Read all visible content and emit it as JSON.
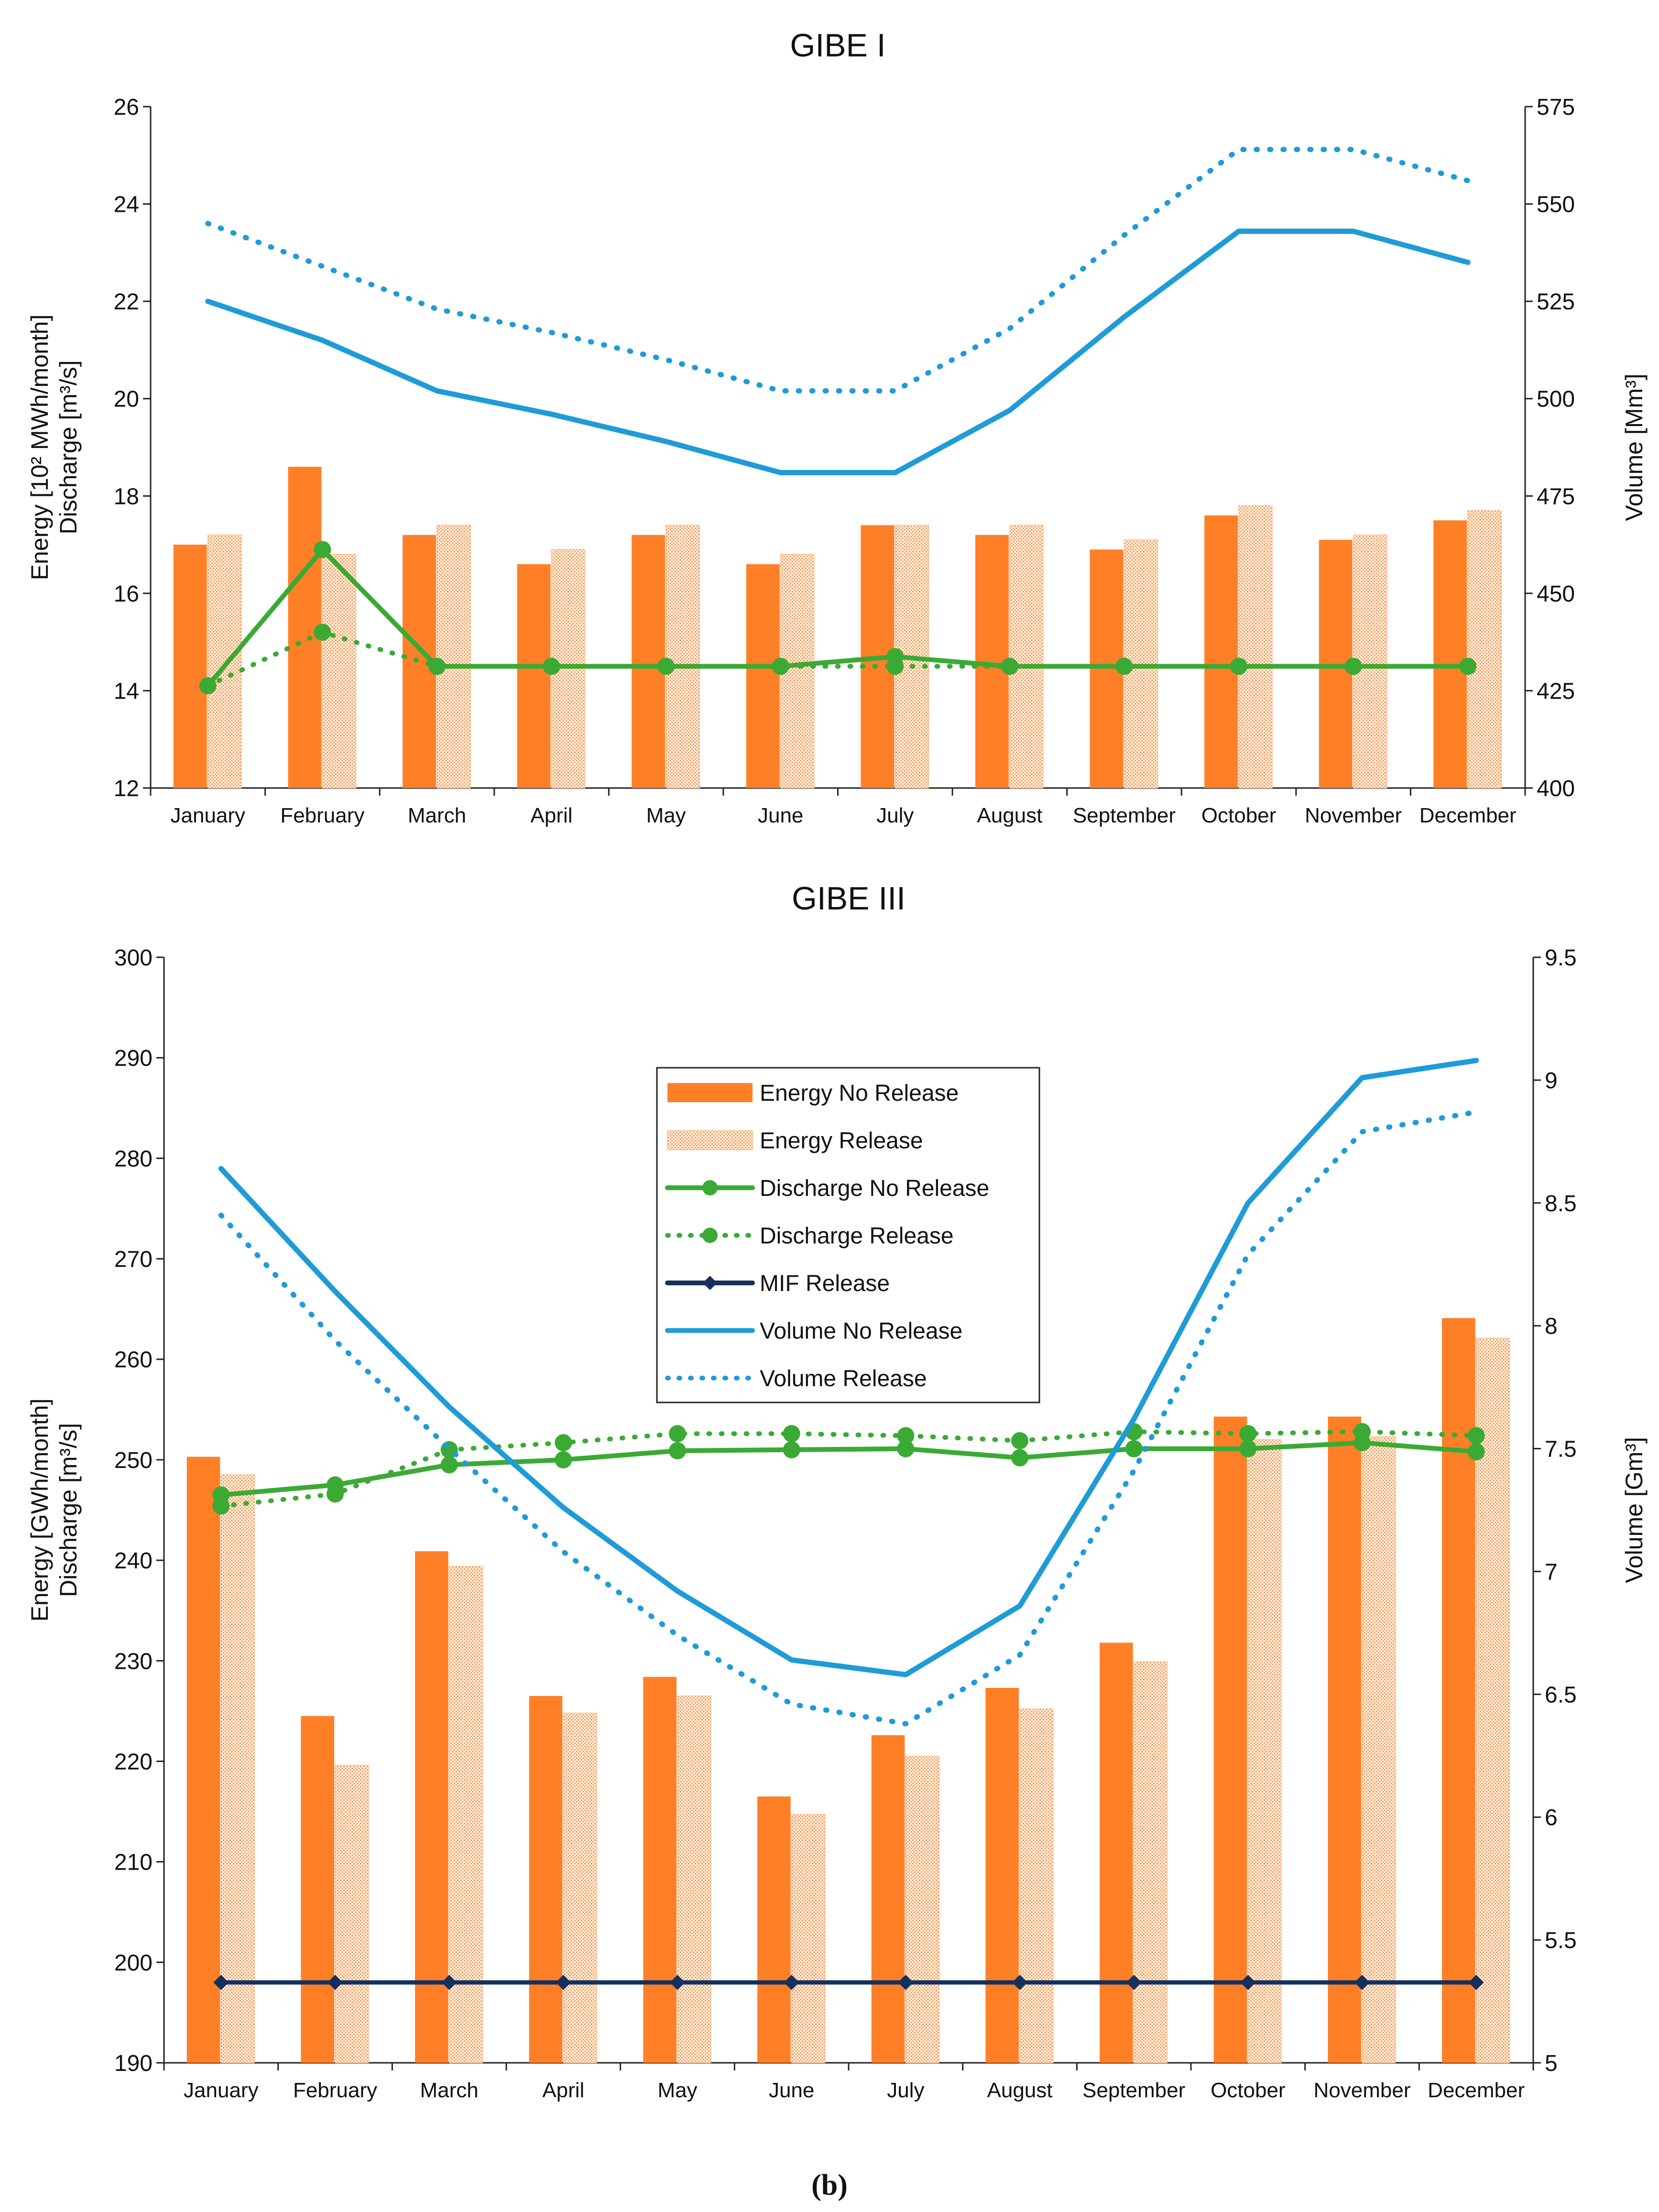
{
  "figure_label": "(b)",
  "months": [
    "January",
    "February",
    "March",
    "April",
    "May",
    "June",
    "July",
    "August",
    "September",
    "October",
    "November",
    "December"
  ],
  "colors": {
    "energy": "#FF7F27",
    "discharge": "#3AAA35",
    "mif": "#16305E",
    "volume": "#1F9BD7",
    "axis": "#222222"
  },
  "legend": [
    {
      "key": "energy_no",
      "label": "Energy No Release",
      "style": "bar-solid"
    },
    {
      "key": "energy_rel",
      "label": "Energy Release",
      "style": "bar-dotted"
    },
    {
      "key": "discharge_no",
      "label": "Discharge No Release",
      "style": "line-solid-marker"
    },
    {
      "key": "discharge_rel",
      "label": "Discharge Release",
      "style": "line-dotted-marker"
    },
    {
      "key": "mif",
      "label": "MIF Release",
      "style": "line-diamond"
    },
    {
      "key": "volume_no",
      "label": "Volume No Release",
      "style": "line-solid"
    },
    {
      "key": "volume_rel",
      "label": "Volume Release",
      "style": "line-dotted"
    }
  ],
  "chart_data": [
    {
      "type": "bar",
      "title": "GIBE I",
      "ylabel_lines": [
        "Energy [10² MWh/month]",
        "Discharge [m³/s]"
      ],
      "y2label": "Volume [Mm³]",
      "ylim": [
        12,
        26
      ],
      "yticks": [
        12,
        14,
        16,
        18,
        20,
        22,
        24,
        26
      ],
      "y2lim": [
        400,
        575
      ],
      "y2ticks": [
        400,
        425,
        450,
        475,
        500,
        525,
        550,
        575
      ],
      "categories": [
        "January",
        "February",
        "March",
        "April",
        "May",
        "June",
        "July",
        "August",
        "September",
        "October",
        "November",
        "December"
      ],
      "series": [
        {
          "name": "Energy No Release",
          "axis": "left",
          "kind": "bar",
          "values": [
            17.0,
            18.6,
            17.2,
            16.6,
            17.2,
            16.6,
            17.4,
            17.2,
            16.9,
            17.6,
            17.1,
            17.5
          ]
        },
        {
          "name": "Energy Release",
          "axis": "left",
          "kind": "bar",
          "values": [
            17.2,
            16.8,
            17.4,
            16.9,
            17.4,
            16.8,
            17.4,
            17.4,
            17.1,
            17.8,
            17.2,
            17.7
          ]
        },
        {
          "name": "Discharge No Release",
          "axis": "left",
          "kind": "line",
          "values": [
            14.1,
            16.9,
            14.5,
            14.5,
            14.5,
            14.5,
            14.7,
            14.5,
            14.5,
            14.5,
            14.5,
            14.5
          ]
        },
        {
          "name": "Discharge Release",
          "axis": "left",
          "kind": "line",
          "values": [
            14.1,
            15.2,
            14.5,
            14.5,
            14.5,
            14.5,
            14.5,
            14.5,
            14.5,
            14.5,
            14.5,
            14.5
          ]
        },
        {
          "name": "Volume No Release",
          "axis": "right",
          "kind": "line",
          "values": [
            525,
            515,
            502,
            496,
            489,
            481,
            481,
            497,
            521,
            543,
            543,
            535
          ]
        },
        {
          "name": "Volume Release",
          "axis": "right",
          "kind": "line",
          "values": [
            545,
            534,
            523,
            517,
            510,
            502,
            502,
            518,
            542,
            564,
            564,
            556
          ]
        }
      ]
    },
    {
      "type": "bar",
      "title": "GIBE III",
      "ylabel_lines": [
        "Energy [GWh/month]",
        "Discharge [m³/s]"
      ],
      "y2label": "Volume [Gm³]",
      "ylim": [
        190,
        300
      ],
      "yticks": [
        190,
        200,
        210,
        220,
        230,
        240,
        250,
        260,
        270,
        280,
        290,
        300
      ],
      "y2lim": [
        5,
        9.5
      ],
      "y2ticks": [
        5,
        5.5,
        6,
        6.5,
        7,
        7.5,
        8,
        8.5,
        9,
        9.5
      ],
      "categories": [
        "January",
        "February",
        "March",
        "April",
        "May",
        "June",
        "July",
        "August",
        "September",
        "October",
        "November",
        "December"
      ],
      "series": [
        {
          "name": "Energy No Release",
          "axis": "left",
          "kind": "bar",
          "values": [
            250.3,
            224.5,
            240.9,
            226.5,
            228.4,
            216.5,
            222.6,
            227.3,
            231.8,
            254.3,
            254.3,
            264.1
          ]
        },
        {
          "name": "Energy Release",
          "axis": "left",
          "kind": "bar",
          "values": [
            248.5,
            219.6,
            239.4,
            224.8,
            226.5,
            214.7,
            220.5,
            225.2,
            229.9,
            252.0,
            252.3,
            262.1
          ]
        },
        {
          "name": "Discharge No Release",
          "axis": "left",
          "kind": "line",
          "values": [
            246.5,
            247.5,
            249.5,
            250.0,
            250.9,
            251.0,
            251.1,
            250.2,
            251.1,
            251.1,
            251.7,
            250.8
          ]
        },
        {
          "name": "Discharge Release",
          "axis": "left",
          "kind": "line",
          "values": [
            245.4,
            246.6,
            251.0,
            251.7,
            252.6,
            252.6,
            252.4,
            251.9,
            252.8,
            252.6,
            252.8,
            252.4
          ]
        },
        {
          "name": "MIF Release",
          "axis": "left",
          "kind": "line",
          "values": [
            198,
            198,
            198,
            198,
            198,
            198,
            198,
            198,
            198,
            198,
            198,
            198
          ]
        },
        {
          "name": "Volume No Release",
          "axis": "right",
          "kind": "line",
          "values": [
            8.64,
            8.14,
            7.67,
            7.26,
            6.92,
            6.64,
            6.58,
            6.86,
            7.62,
            8.5,
            9.01,
            9.08
          ]
        },
        {
          "name": "Volume Release",
          "axis": "right",
          "kind": "line",
          "values": [
            8.45,
            7.94,
            7.5,
            7.08,
            6.74,
            6.46,
            6.38,
            6.66,
            7.41,
            8.29,
            8.79,
            8.87
          ]
        }
      ]
    }
  ]
}
